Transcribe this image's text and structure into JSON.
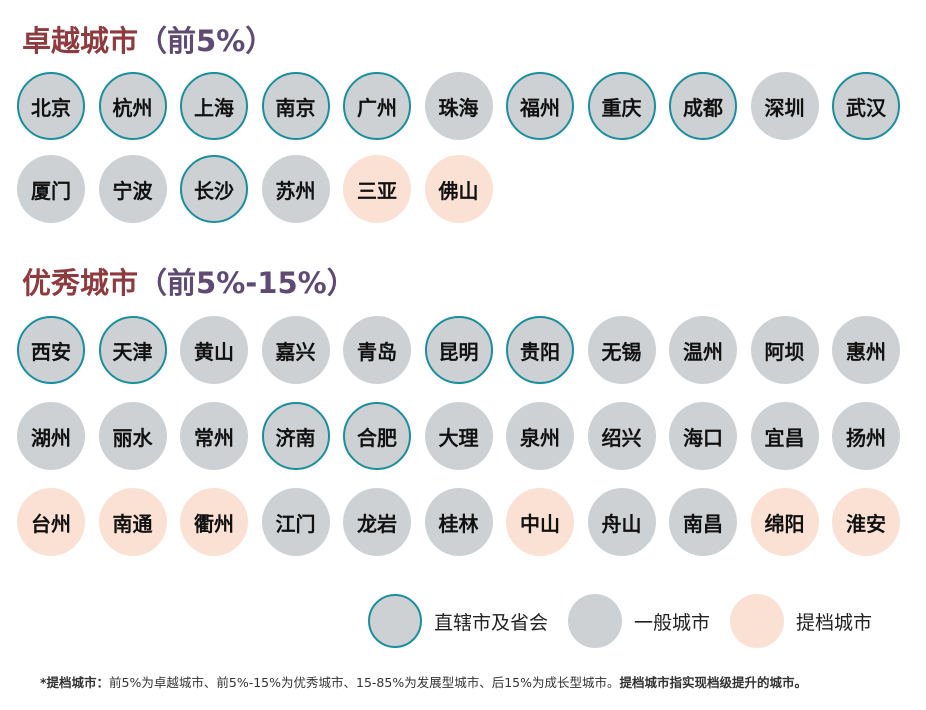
{
  "legend": [
    {
      "label": "直辖市及省会",
      "fill": "#ced1d3",
      "ring": "#1b8e9e"
    },
    {
      "label": "一般城市",
      "fill": "#ced1d3",
      "ring": null
    },
    {
      "label": "提档城市",
      "fill": "#fbe1d3",
      "ring": null
    }
  ],
  "sections": [
    {
      "title": "卓越城市",
      "subtitle": "（前5%）",
      "cities": [
        {
          "name": "北京",
          "legend": 0
        },
        {
          "name": "杭州",
          "legend": 0
        },
        {
          "name": "上海",
          "legend": 0
        },
        {
          "name": "南京",
          "legend": 0
        },
        {
          "name": "广州",
          "legend": 0
        },
        {
          "name": "珠海",
          "legend": 1
        },
        {
          "name": "福州",
          "legend": 0
        },
        {
          "name": "重庆",
          "legend": 0
        },
        {
          "name": "成都",
          "legend": 0
        },
        {
          "name": "深圳",
          "legend": 1
        },
        {
          "name": "武汉",
          "legend": 0
        },
        {
          "name": "厦门",
          "legend": 1
        },
        {
          "name": "宁波",
          "legend": 1
        },
        {
          "name": "长沙",
          "legend": 0
        },
        {
          "name": "苏州",
          "legend": 1
        },
        {
          "name": "三亚",
          "legend": 2
        },
        {
          "name": "佛山",
          "legend": 2
        }
      ]
    },
    {
      "title": "优秀城市",
      "subtitle": "（前5%-15%）",
      "cities": [
        {
          "name": "西安",
          "legend": 0
        },
        {
          "name": "天津",
          "legend": 0
        },
        {
          "name": "黄山",
          "legend": 1
        },
        {
          "name": "嘉兴",
          "legend": 1
        },
        {
          "name": "青岛",
          "legend": 1
        },
        {
          "name": "昆明",
          "legend": 0
        },
        {
          "name": "贵阳",
          "legend": 0
        },
        {
          "name": "无锡",
          "legend": 1
        },
        {
          "name": "温州",
          "legend": 1
        },
        {
          "name": "阿坝",
          "legend": 1
        },
        {
          "name": "惠州",
          "legend": 1
        },
        {
          "name": "湖州",
          "legend": 1
        },
        {
          "name": "丽水",
          "legend": 1
        },
        {
          "name": "常州",
          "legend": 1
        },
        {
          "name": "济南",
          "legend": 0
        },
        {
          "name": "合肥",
          "legend": 0
        },
        {
          "name": "大理",
          "legend": 1
        },
        {
          "name": "泉州",
          "legend": 1
        },
        {
          "name": "绍兴",
          "legend": 1
        },
        {
          "name": "海口",
          "legend": 1
        },
        {
          "name": "宜昌",
          "legend": 1
        },
        {
          "name": "扬州",
          "legend": 1
        },
        {
          "name": "台州",
          "legend": 2
        },
        {
          "name": "南通",
          "legend": 2
        },
        {
          "name": "衢州",
          "legend": 2
        },
        {
          "name": "江门",
          "legend": 1
        },
        {
          "name": "龙岩",
          "legend": 1
        },
        {
          "name": "桂林",
          "legend": 1
        },
        {
          "name": "中山",
          "legend": 2
        },
        {
          "name": "舟山",
          "legend": 1
        },
        {
          "name": "南昌",
          "legend": 1
        },
        {
          "name": "绵阳",
          "legend": 2
        },
        {
          "name": "淮安",
          "legend": 2
        }
      ]
    }
  ],
  "footnote": {
    "lead": "*提档城市：",
    "body": "前5%为卓越城市、前5%-15%为优秀城市、15-85%为发展型城市、后15%为成长型城市。",
    "tail": "提档城市指实现档级提升的城市。"
  }
}
